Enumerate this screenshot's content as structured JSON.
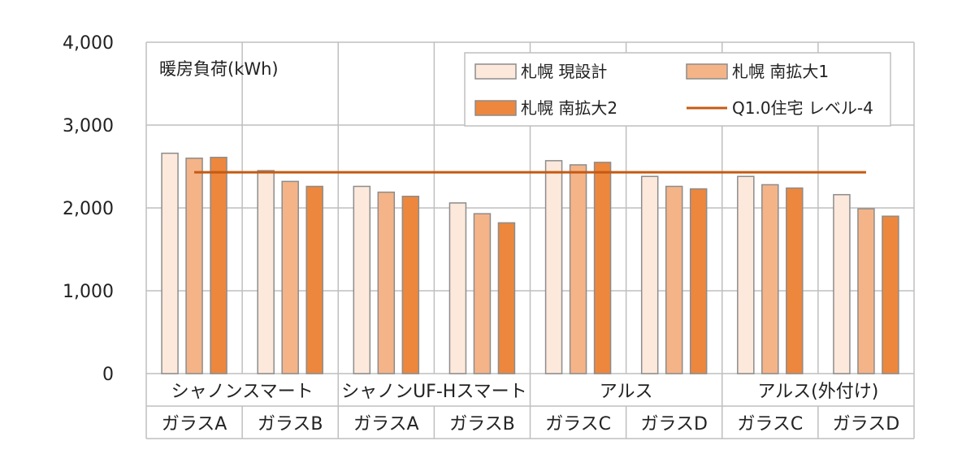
{
  "chart_data": {
    "type": "bar",
    "annotation": "暖房負荷(kWh)",
    "ylim": [
      0,
      4000
    ],
    "yticks": [
      "0",
      "1,000",
      "2,000",
      "3,000",
      "4,000"
    ],
    "groups": [
      {
        "label": "シャノンスマート",
        "subs": [
          "ガラスA",
          "ガラスB"
        ]
      },
      {
        "label": "シャノンUF-Hスマート",
        "subs": [
          "ガラスA",
          "ガラスB"
        ]
      },
      {
        "label": "アルス",
        "subs": [
          "ガラスC",
          "ガラスD"
        ]
      },
      {
        "label": "アルス(外付け)",
        "subs": [
          "ガラスC",
          "ガラスD"
        ]
      }
    ],
    "categories": [
      "ガラスA",
      "ガラスB",
      "ガラスA",
      "ガラスB",
      "ガラスC",
      "ガラスD",
      "ガラスC",
      "ガラスD"
    ],
    "series": [
      {
        "name": "札幌 現設計",
        "color": "#fde9dc",
        "values": [
          2660,
          2450,
          2260,
          2060,
          2570,
          2380,
          2380,
          2160
        ]
      },
      {
        "name": "札幌 南拡大1",
        "color": "#f4b488",
        "values": [
          2600,
          2320,
          2190,
          1930,
          2520,
          2260,
          2280,
          1990
        ]
      },
      {
        "name": "札幌 南拡大2",
        "color": "#ed873d",
        "values": [
          2610,
          2260,
          2140,
          1820,
          2550,
          2230,
          2240,
          1900
        ]
      }
    ],
    "reference_line": {
      "name": "Q1.0住宅 レベル-4",
      "color": "#c55a11",
      "value": 2430
    },
    "grid": true,
    "legend": "top-right"
  }
}
